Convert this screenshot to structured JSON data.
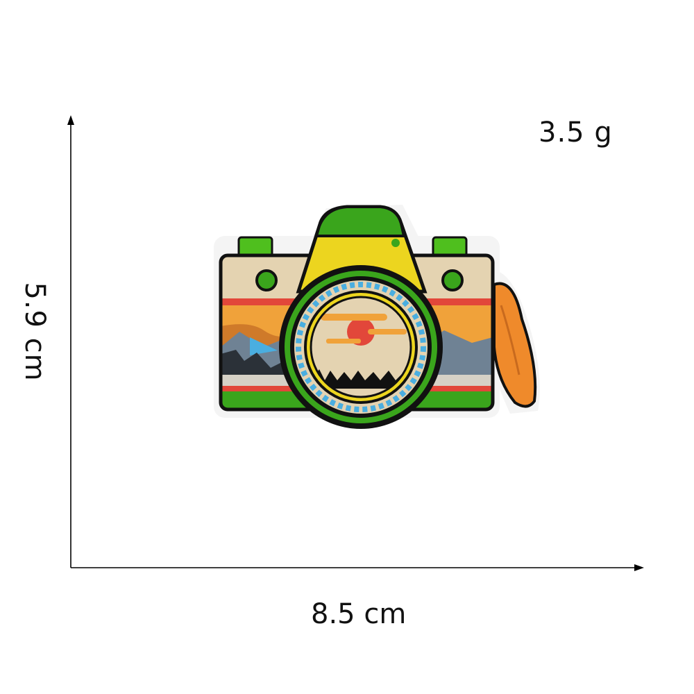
{
  "measurements": {
    "weight": "3.5 g",
    "width": "8.5 cm",
    "height": "5.9  cm"
  },
  "product": {
    "icon": "camera-icon"
  },
  "colors": {
    "axis": "#000000",
    "outline": "#111111",
    "body_beige": "#e4d3b1",
    "green": "#3aa51c",
    "yellow": "#ecd51f",
    "lens_blue": "#4aaee0",
    "sunset_orange": "#f0a23a",
    "red": "#e2473a",
    "mountain_blue": "#6f8294",
    "strap_orange": "#ef8a2b"
  }
}
